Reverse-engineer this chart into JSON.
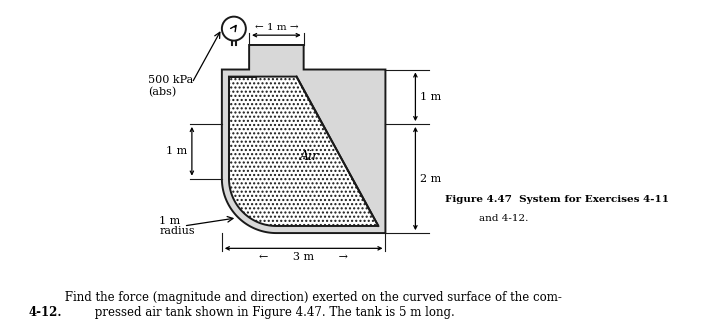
{
  "bg_color": "#ffffff",
  "fig_width": 7.2,
  "fig_height": 3.29,
  "dpi": 100,
  "title_text": "Figure 4.47",
  "figure_caption": "System for Exercises 4-11\nand 4-12.",
  "problem_bold": "4-12.",
  "problem_text": "  Find the force (magnitude and direction) exerted on the curved surface of the com-\n         pressed air tank shown in Figure 4.47. The tank is 5 m long.",
  "label_500kPa": "500 kPa\n(abs)",
  "label_1m_top": "← 1 m →",
  "label_1m_right_top": "1 m",
  "label_2m_right": "2 m",
  "label_3m_bottom": "←       3 m       →",
  "label_1m_left": "1 m",
  "label_radius": "radius",
  "label_air": "Air",
  "line_color": "#1a1a1a",
  "wall_hatch": "....",
  "air_hatch": "....",
  "lw_main": 1.4,
  "lw_thin": 0.8,
  "wt": 0.13
}
